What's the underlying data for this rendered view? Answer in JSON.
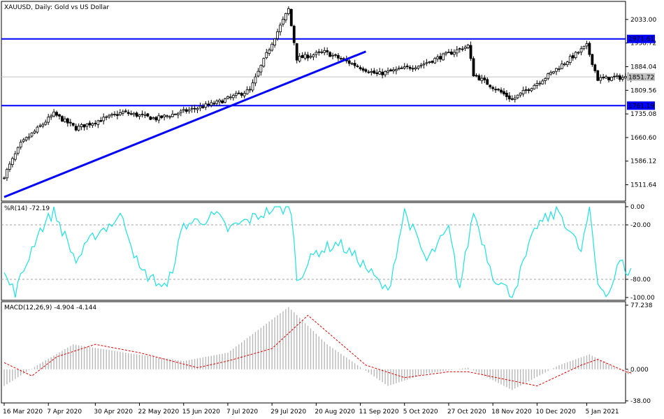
{
  "colors": {
    "background": "#ffffff",
    "frame": "#000000",
    "candles": "#000000",
    "levels": "#0000ff",
    "wpr": "#1ee0e0",
    "macd_hist": "#b8b8b8",
    "macd_signal": "#e00000",
    "current_price_line": "#c0c0c0"
  },
  "chart_data": [
    {
      "type": "candlestick",
      "title": "XAUUSD, Daily:  Gold vs US Dollar",
      "ylim": [
        1460,
        2090
      ],
      "price_ticks": [
        2033.0,
        1958.72,
        1884.04,
        1809.56,
        1735.08,
        1660.6,
        1586.12,
        1511.64
      ],
      "price_tick_labels": [
        "2033.00",
        "1958.72",
        "1884.04",
        "1809.56",
        "1735.08",
        "1660.60",
        "1586.12",
        "1511.64"
      ],
      "levels": [
        {
          "value": 1971.61,
          "label": "1971.61"
        },
        {
          "value": 1761.19,
          "label": "1761.19"
        }
      ],
      "current_price": {
        "value": 1851.72,
        "label": "1851.72"
      },
      "trendline": {
        "from": {
          "date": "16 Mar 2020",
          "price": 1473
        },
        "to": {
          "date": "15 Sep 2020",
          "price": 1932
        }
      },
      "anchors": [
        {
          "date": "16 Mar 2020",
          "close": 1540
        },
        {
          "date": "24 Mar 2020",
          "close": 1640
        },
        {
          "date": "9 Apr 2020",
          "close": 1735
        },
        {
          "date": "21 Apr 2020",
          "close": 1690
        },
        {
          "date": "14 May 2020",
          "close": 1740
        },
        {
          "date": "1 Jun 2020",
          "close": 1720
        },
        {
          "date": "1 Jul 2020",
          "close": 1770
        },
        {
          "date": "17 Jul 2020",
          "close": 1810
        },
        {
          "date": "29 Jul 2020",
          "close": 1960
        },
        {
          "date": "6 Aug 2020",
          "close": 2065
        },
        {
          "date": "11 Aug 2020",
          "close": 1910
        },
        {
          "date": "25 Aug 2020",
          "close": 1930
        },
        {
          "date": "21 Sep 2020",
          "close": 1860
        },
        {
          "date": "13 Oct 2020",
          "close": 1890
        },
        {
          "date": "5 Nov 2020",
          "close": 1950
        },
        {
          "date": "9 Nov 2020",
          "close": 1860
        },
        {
          "date": "27 Nov 2020",
          "close": 1780
        },
        {
          "date": "15 Dec 2020",
          "close": 1850
        },
        {
          "date": "5 Jan 2021",
          "close": 1950
        },
        {
          "date": "11 Jan 2021",
          "close": 1845
        },
        {
          "date": "20 Jan 2021",
          "close": 1850
        }
      ]
    },
    {
      "type": "line",
      "title": "%R(14) -72.19",
      "ylim": [
        -100,
        0
      ],
      "ticks": [
        0,
        -20,
        -80,
        -100
      ],
      "tick_labels": [
        "0.00",
        "-20.00",
        "-80.00",
        "-100.00"
      ],
      "dashed_levels": [
        -20,
        -80
      ],
      "anchors": [
        {
          "date": "16 Mar 2020",
          "value": -75
        },
        {
          "date": "20 Mar 2020",
          "value": -95
        },
        {
          "date": "1 Apr 2020",
          "value": -30
        },
        {
          "date": "9 Apr 2020",
          "value": -5
        },
        {
          "date": "21 Apr 2020",
          "value": -60
        },
        {
          "date": "30 Apr 2020",
          "value": -30
        },
        {
          "date": "14 May 2020",
          "value": -10
        },
        {
          "date": "22 May 2020",
          "value": -70
        },
        {
          "date": "5 Jun 2020",
          "value": -90
        },
        {
          "date": "15 Jun 2020",
          "value": -20
        },
        {
          "date": "1 Jul 2020",
          "value": -10
        },
        {
          "date": "7 Jul 2020",
          "value": -25
        },
        {
          "date": "29 Jul 2020",
          "value": -3
        },
        {
          "date": "7 Aug 2020",
          "value": -2
        },
        {
          "date": "11 Aug 2020",
          "value": -80
        },
        {
          "date": "20 Aug 2020",
          "value": -50
        },
        {
          "date": "1 Sep 2020",
          "value": -40
        },
        {
          "date": "11 Sep 2020",
          "value": -60
        },
        {
          "date": "25 Sep 2020",
          "value": -95
        },
        {
          "date": "5 Oct 2020",
          "value": -5
        },
        {
          "date": "15 Oct 2020",
          "value": -60
        },
        {
          "date": "27 Oct 2020",
          "value": -25
        },
        {
          "date": "2 Nov 2020",
          "value": -90
        },
        {
          "date": "9 Nov 2020",
          "value": -5
        },
        {
          "date": "18 Nov 2020",
          "value": -75
        },
        {
          "date": "27 Nov 2020",
          "value": -98
        },
        {
          "date": "10 Dec 2020",
          "value": -20
        },
        {
          "date": "22 Dec 2020",
          "value": -5
        },
        {
          "date": "1 Jan 2021",
          "value": -50
        },
        {
          "date": "6 Jan 2021",
          "value": -2
        },
        {
          "date": "11 Jan 2021",
          "value": -85
        },
        {
          "date": "15 Jan 2021",
          "value": -95
        },
        {
          "date": "21 Jan 2021",
          "value": -60
        },
        {
          "date": "26 Jan 2021",
          "value": -72
        }
      ]
    },
    {
      "type": "bar",
      "title": "MACD(12,26,9) -4.904 -4.144",
      "ylim": [
        -38,
        77.238
      ],
      "ticks": [
        77.238,
        0,
        -38
      ],
      "tick_labels": [
        "77.238",
        "0.000",
        "-38.00"
      ],
      "histogram_anchors": [
        {
          "date": "16 Mar 2020",
          "value": -20
        },
        {
          "date": "1 Apr 2020",
          "value": 5
        },
        {
          "date": "20 Apr 2020",
          "value": 30
        },
        {
          "date": "15 May 2020",
          "value": 20
        },
        {
          "date": "15 Jun 2020",
          "value": 10
        },
        {
          "date": "7 Jul 2020",
          "value": 20
        },
        {
          "date": "6 Aug 2020",
          "value": 75
        },
        {
          "date": "26 Aug 2020",
          "value": 30
        },
        {
          "date": "25 Sep 2020",
          "value": -20
        },
        {
          "date": "15 Oct 2020",
          "value": -5
        },
        {
          "date": "5 Nov 2020",
          "value": 2
        },
        {
          "date": "27 Nov 2020",
          "value": -25
        },
        {
          "date": "22 Dec 2020",
          "value": 5
        },
        {
          "date": "6 Jan 2021",
          "value": 18
        },
        {
          "date": "26 Jan 2021",
          "value": -6
        }
      ],
      "signal_anchors": [
        {
          "date": "16 Mar 2020",
          "value": 8
        },
        {
          "date": "30 Mar 2020",
          "value": -8
        },
        {
          "date": "10 Apr 2020",
          "value": 15
        },
        {
          "date": "30 Apr 2020",
          "value": 30
        },
        {
          "date": "22 May 2020",
          "value": 20
        },
        {
          "date": "20 Jun 2020",
          "value": 2
        },
        {
          "date": "7 Jul 2020",
          "value": 10
        },
        {
          "date": "29 Jul 2020",
          "value": 25
        },
        {
          "date": "15 Aug 2020",
          "value": 65
        },
        {
          "date": "15 Sep 2020",
          "value": 5
        },
        {
          "date": "5 Oct 2020",
          "value": -10
        },
        {
          "date": "27 Oct 2020",
          "value": -3
        },
        {
          "date": "5 Nov 2020",
          "value": -3
        },
        {
          "date": "10 Dec 2020",
          "value": -20
        },
        {
          "date": "1 Jan 2021",
          "value": 5
        },
        {
          "date": "10 Jan 2021",
          "value": 12
        },
        {
          "date": "26 Jan 2021",
          "value": -4
        }
      ]
    }
  ],
  "x_axis": {
    "labels": [
      {
        "date": "16 Mar 2020",
        "label": "16 Mar 2020"
      },
      {
        "date": "7 Apr 2020",
        "label": "7 Apr 2020"
      },
      {
        "date": "30 Apr 2020",
        "label": "30 Apr 2020"
      },
      {
        "date": "22 May 2020",
        "label": "22 May 2020"
      },
      {
        "date": "15 Jun 2020",
        "label": "15 Jun 2020"
      },
      {
        "date": "7 Jul 2020",
        "label": "7 Jul 2020"
      },
      {
        "date": "29 Jul 2020",
        "label": "29 Jul 2020"
      },
      {
        "date": "20 Aug 2020",
        "label": "20 Aug 2020"
      },
      {
        "date": "11 Sep 2020",
        "label": "11 Sep 2020"
      },
      {
        "date": "5 Oct 2020",
        "label": "5 Oct 2020"
      },
      {
        "date": "27 Oct 2020",
        "label": "27 Oct 2020"
      },
      {
        "date": "18 Nov 2020",
        "label": "18 Nov 2020"
      },
      {
        "date": "10 Dec 2020",
        "label": "10 Dec 2020"
      },
      {
        "date": "5 Jan 2021",
        "label": "5 Jan 2021"
      }
    ]
  }
}
